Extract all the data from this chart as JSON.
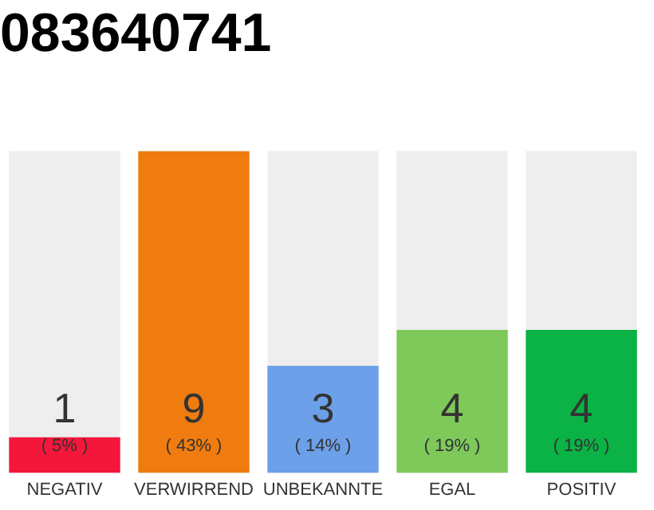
{
  "chart_data": {
    "type": "bar",
    "title": "083640741",
    "categories": [
      "NEGATIV",
      "VERWIRREND",
      "UNBEKANNTE",
      "EGAL",
      "POSITIV"
    ],
    "values": [
      1,
      9,
      3,
      4,
      4
    ],
    "colors": [
      "#f5163b",
      "#f07c0f",
      "#6ca0e8",
      "#7ec95a",
      "#0bb245"
    ],
    "ylim": [
      0,
      9
    ],
    "data_labels": true,
    "grid": false,
    "legend": false,
    "tick_labels": "x",
    "annotations": [
      "( 5% )",
      "( 43% )",
      "( 14% )",
      "( 19% )",
      "( 19% )"
    ]
  }
}
